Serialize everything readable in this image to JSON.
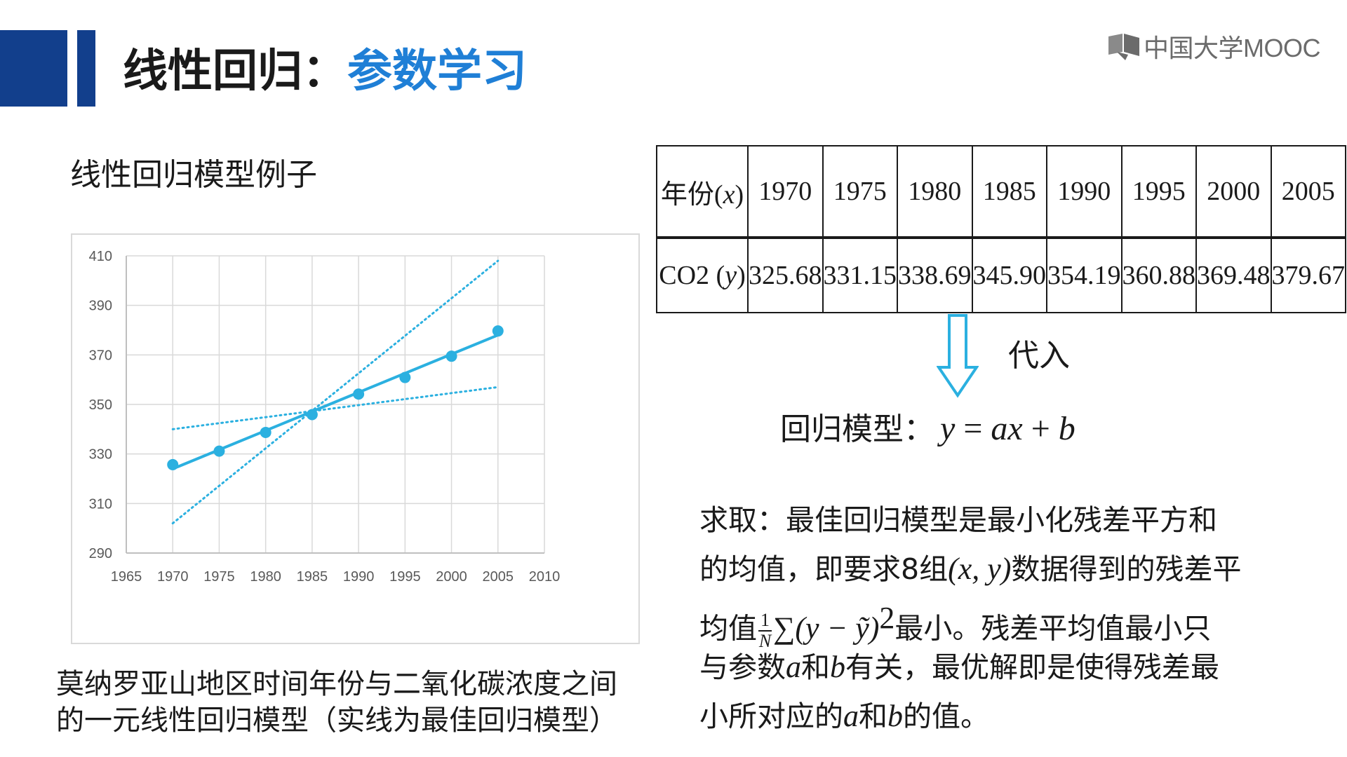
{
  "header": {
    "title_prefix": "线性回归：",
    "title_accent": "参数学习",
    "logo_text": "中国大学MOOC",
    "accent_color": "#1f7fd6",
    "bar_color": "#123f8c"
  },
  "left": {
    "subheading": "线性回归模型例子",
    "caption_line1": "莫纳罗亚山地区时间年份与二氧化碳浓度之间",
    "caption_line2": "的一元线性回归模型（实线为最佳回归模型）"
  },
  "table": {
    "row1_label_prefix": "年份(",
    "row1_label_var": "x",
    "row1_label_suffix": ")",
    "row2_label_prefix": "CO2 (",
    "row2_label_var": "y",
    "row2_label_suffix": ")",
    "years": [
      "1970",
      "1975",
      "1980",
      "1985",
      "1990",
      "1995",
      "2000",
      "2005"
    ],
    "co2": [
      "325.68",
      "331.15",
      "338.69",
      "345.90",
      "354.19",
      "360.88",
      "369.48",
      "379.67"
    ]
  },
  "right": {
    "substitute_label": "代入",
    "model_label": "回归模型：",
    "model_eq_y": "y",
    "model_eq_eq": " = ",
    "model_eq_ax": "ax",
    "model_eq_plus": " + ",
    "model_eq_b": "b",
    "explain": {
      "l1": "求取：最佳回归模型是最小化残差平方和",
      "l2a": "的均值，即要求8组",
      "l2m": "(x, y)",
      "l2b": "数据得到的残差平",
      "l3a": "均值",
      "l3_frac_num": "1",
      "l3_frac_den": "N",
      "l3m": "∑(y − ỹ)",
      "l3sup": "2",
      "l3b": "最小。残差平均值最小只",
      "l4a": "与参数",
      "l4m1": "a",
      "l4b": "和",
      "l4m2": "b",
      "l4c": "有关，最优解即是使得残差最",
      "l5a": "小所对应的",
      "l5m1": "a",
      "l5b": "和",
      "l5m2": "b",
      "l5c": "的值。"
    }
  },
  "chart_data": {
    "type": "scatter",
    "x_ticks": [
      "1965",
      "1970",
      "1975",
      "1980",
      "1985",
      "1990",
      "1995",
      "2000",
      "2005",
      "2010"
    ],
    "y_ticks": [
      "290",
      "310",
      "330",
      "350",
      "370",
      "390",
      "410"
    ],
    "xlim": [
      1965,
      2010
    ],
    "ylim": [
      290,
      410
    ],
    "grid": true,
    "series": [
      {
        "style": "markers+line",
        "color": "#2bb0e0",
        "x": [
          1970,
          1975,
          1980,
          1985,
          1990,
          1995,
          2000,
          2005
        ],
        "y": [
          325.68,
          331.15,
          338.69,
          345.9,
          354.19,
          360.88,
          369.48,
          379.67
        ]
      },
      {
        "style": "solid-line",
        "color": "#2bb0e0",
        "x": [
          1970,
          2005
        ],
        "y": [
          324,
          378
        ]
      },
      {
        "style": "dotted-line",
        "color": "#2bb0e0",
        "x": [
          1970,
          2005
        ],
        "y": [
          302,
          408
        ]
      },
      {
        "style": "dotted-line",
        "color": "#2bb0e0",
        "x": [
          1970,
          2005
        ],
        "y": [
          340,
          357
        ]
      }
    ]
  }
}
